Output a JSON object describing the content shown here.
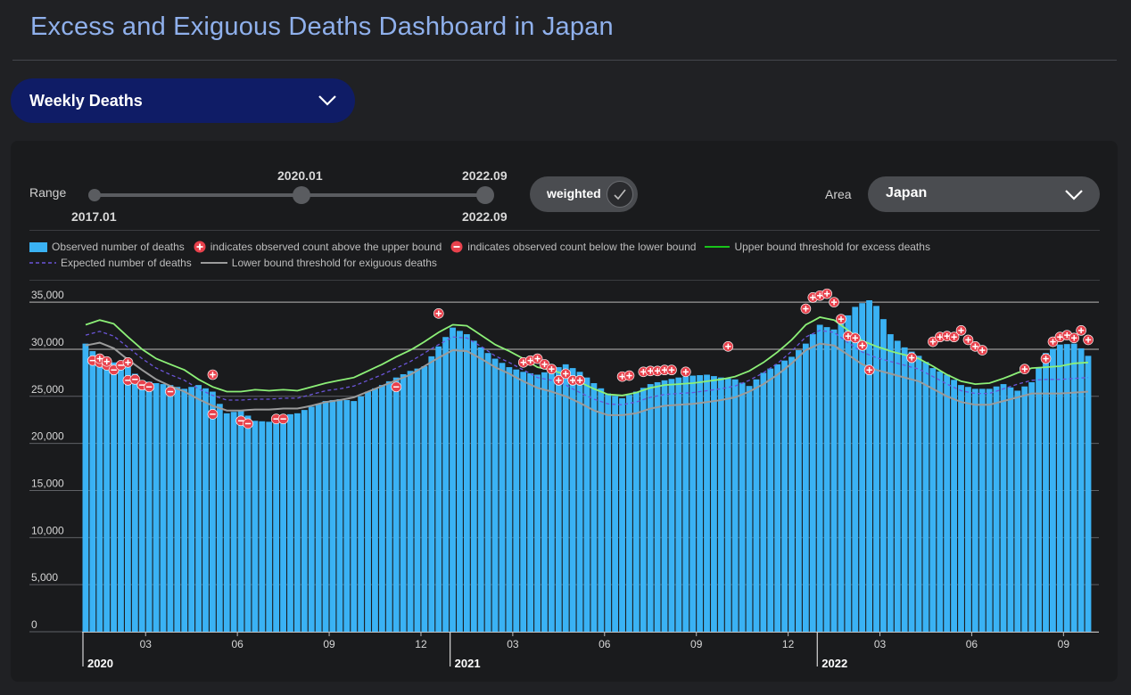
{
  "title": "Excess and Exiguous Deaths Dashboard in Japan",
  "metric_select": {
    "value": "Weekly Deaths",
    "icon": "chevron-down-icon"
  },
  "controls": {
    "range_label": "Range",
    "range_min": "2017.01",
    "range_start": "2020.01",
    "range_end": "2022.09",
    "range_end_below": "2022.09",
    "weighted_label": "weighted",
    "weighted_checked": true,
    "area_label": "Area",
    "area_value": "Japan"
  },
  "legend": {
    "observed": "Observed number of deaths",
    "above": "indicates observed count above the upper bound",
    "below": "indicates observed count below the lower bound",
    "upper": "Upper bound threshold for excess deaths",
    "expected": "Expected number of deaths",
    "lower": "Lower bound threshold for exiguous deaths"
  },
  "colors": {
    "bar": "#3ab2f4",
    "upper": "#8cf077",
    "expected": "#6b55d8",
    "lower": "#9b9b9b",
    "marker": "#e8414c",
    "title": "#8fb0ec"
  },
  "chart_data": {
    "type": "bar",
    "ylim": [
      0,
      37000
    ],
    "y_ticks": [
      "0",
      "5,000",
      "10,000",
      "15,000",
      "20,000",
      "25,000",
      "30,000",
      "35,000"
    ],
    "y_tick_values": [
      0,
      5000,
      10000,
      15000,
      20000,
      25000,
      30000,
      35000
    ],
    "x_ticks": [
      {
        "week": 9,
        "label": "03"
      },
      {
        "week": 22,
        "label": "06"
      },
      {
        "week": 35,
        "label": "09"
      },
      {
        "week": 48,
        "label": "12"
      },
      {
        "week": 61,
        "label": "03"
      },
      {
        "week": 74,
        "label": "06"
      },
      {
        "week": 87,
        "label": "09"
      },
      {
        "week": 100,
        "label": "12"
      },
      {
        "week": 113,
        "label": "03"
      },
      {
        "week": 126,
        "label": "06"
      },
      {
        "week": 139,
        "label": "09"
      }
    ],
    "years": [
      {
        "week": 0,
        "label": "2020"
      },
      {
        "week": 52,
        "label": "2021"
      },
      {
        "week": 104,
        "label": "2022"
      }
    ],
    "n_weeks": 143,
    "observed_anchors": [
      [
        0,
        30600
      ],
      [
        2,
        29000
      ],
      [
        4,
        28600
      ],
      [
        6,
        28100
      ],
      [
        8,
        26700
      ],
      [
        10,
        26400
      ],
      [
        12,
        26200
      ],
      [
        14,
        25800
      ],
      [
        16,
        26200
      ],
      [
        18,
        25500
      ],
      [
        19,
        24200
      ],
      [
        20,
        23200
      ],
      [
        22,
        23500
      ],
      [
        24,
        22400
      ],
      [
        26,
        22300
      ],
      [
        28,
        23000
      ],
      [
        30,
        23200
      ],
      [
        32,
        23900
      ],
      [
        34,
        24500
      ],
      [
        36,
        24700
      ],
      [
        38,
        24500
      ],
      [
        40,
        25500
      ],
      [
        42,
        26200
      ],
      [
        44,
        27000
      ],
      [
        46,
        27700
      ],
      [
        48,
        28200
      ],
      [
        50,
        30300
      ],
      [
        52,
        32300
      ],
      [
        54,
        31600
      ],
      [
        56,
        30200
      ],
      [
        58,
        29000
      ],
      [
        60,
        28100
      ],
      [
        62,
        27600
      ],
      [
        64,
        27300
      ],
      [
        66,
        27800
      ],
      [
        68,
        28400
      ],
      [
        70,
        27600
      ],
      [
        72,
        26400
      ],
      [
        74,
        25300
      ],
      [
        76,
        24800
      ],
      [
        78,
        25500
      ],
      [
        80,
        26300
      ],
      [
        82,
        26700
      ],
      [
        84,
        27000
      ],
      [
        86,
        27200
      ],
      [
        88,
        27300
      ],
      [
        90,
        27000
      ],
      [
        92,
        26800
      ],
      [
        94,
        26100
      ],
      [
        96,
        27500
      ],
      [
        98,
        28400
      ],
      [
        100,
        29200
      ],
      [
        102,
        30600
      ],
      [
        104,
        32600
      ],
      [
        106,
        32100
      ],
      [
        108,
        33600
      ],
      [
        109,
        34500
      ],
      [
        110,
        34900
      ],
      [
        111,
        35200
      ],
      [
        112,
        34600
      ],
      [
        113,
        33200
      ],
      [
        114,
        31600
      ],
      [
        116,
        30200
      ],
      [
        118,
        29300
      ],
      [
        120,
        28000
      ],
      [
        122,
        27300
      ],
      [
        124,
        26200
      ],
      [
        126,
        25800
      ],
      [
        128,
        25800
      ],
      [
        130,
        26300
      ],
      [
        132,
        25600
      ],
      [
        134,
        26500
      ],
      [
        136,
        29600
      ],
      [
        138,
        30500
      ],
      [
        140,
        30600
      ],
      [
        141,
        30100
      ],
      [
        142,
        29300
      ]
    ],
    "upper_anchors": [
      [
        0,
        32600
      ],
      [
        2,
        33100
      ],
      [
        4,
        32700
      ],
      [
        6,
        31300
      ],
      [
        8,
        30000
      ],
      [
        10,
        29000
      ],
      [
        12,
        28400
      ],
      [
        14,
        27800
      ],
      [
        16,
        26800
      ],
      [
        18,
        26000
      ],
      [
        20,
        25500
      ],
      [
        22,
        25500
      ],
      [
        24,
        25700
      ],
      [
        26,
        25600
      ],
      [
        28,
        25700
      ],
      [
        30,
        25600
      ],
      [
        32,
        26000
      ],
      [
        34,
        26400
      ],
      [
        36,
        26700
      ],
      [
        38,
        27000
      ],
      [
        40,
        27700
      ],
      [
        42,
        28400
      ],
      [
        44,
        29200
      ],
      [
        46,
        29900
      ],
      [
        48,
        30800
      ],
      [
        50,
        31800
      ],
      [
        52,
        32600
      ],
      [
        54,
        32500
      ],
      [
        56,
        31500
      ],
      [
        58,
        30500
      ],
      [
        60,
        29800
      ],
      [
        62,
        29000
      ],
      [
        64,
        28100
      ],
      [
        66,
        27800
      ],
      [
        68,
        27300
      ],
      [
        70,
        26500
      ],
      [
        72,
        25800
      ],
      [
        74,
        25200
      ],
      [
        76,
        25100
      ],
      [
        78,
        25400
      ],
      [
        80,
        25900
      ],
      [
        82,
        26200
      ],
      [
        84,
        26300
      ],
      [
        86,
        26400
      ],
      [
        88,
        26600
      ],
      [
        90,
        26800
      ],
      [
        92,
        27100
      ],
      [
        94,
        27700
      ],
      [
        96,
        28600
      ],
      [
        98,
        29700
      ],
      [
        100,
        31000
      ],
      [
        102,
        32600
      ],
      [
        104,
        33400
      ],
      [
        106,
        33100
      ],
      [
        108,
        32000
      ],
      [
        110,
        30900
      ],
      [
        112,
        30300
      ],
      [
        114,
        29800
      ],
      [
        116,
        29400
      ],
      [
        118,
        29000
      ],
      [
        120,
        28200
      ],
      [
        122,
        27300
      ],
      [
        124,
        26600
      ],
      [
        126,
        26300
      ],
      [
        128,
        26400
      ],
      [
        130,
        26900
      ],
      [
        132,
        27500
      ],
      [
        134,
        28000
      ],
      [
        136,
        28100
      ],
      [
        138,
        28200
      ],
      [
        140,
        28500
      ],
      [
        142,
        28600
      ]
    ],
    "expected_anchors": [
      [
        0,
        31500
      ],
      [
        2,
        31900
      ],
      [
        4,
        31400
      ],
      [
        6,
        30200
      ],
      [
        8,
        29000
      ],
      [
        10,
        28000
      ],
      [
        12,
        27300
      ],
      [
        14,
        26700
      ],
      [
        16,
        25800
      ],
      [
        18,
        25100
      ],
      [
        20,
        24600
      ],
      [
        22,
        24600
      ],
      [
        24,
        24700
      ],
      [
        26,
        24700
      ],
      [
        28,
        24800
      ],
      [
        30,
        24800
      ],
      [
        32,
        25200
      ],
      [
        34,
        25600
      ],
      [
        36,
        25800
      ],
      [
        38,
        26100
      ],
      [
        40,
        26700
      ],
      [
        42,
        27300
      ],
      [
        44,
        28000
      ],
      [
        46,
        28700
      ],
      [
        48,
        29600
      ],
      [
        50,
        30500
      ],
      [
        52,
        31300
      ],
      [
        54,
        31200
      ],
      [
        56,
        30300
      ],
      [
        58,
        29300
      ],
      [
        60,
        28600
      ],
      [
        62,
        27800
      ],
      [
        64,
        27000
      ],
      [
        66,
        26700
      ],
      [
        68,
        26200
      ],
      [
        70,
        25400
      ],
      [
        72,
        24700
      ],
      [
        74,
        24200
      ],
      [
        76,
        24100
      ],
      [
        78,
        24400
      ],
      [
        80,
        24900
      ],
      [
        82,
        25200
      ],
      [
        84,
        25300
      ],
      [
        86,
        25400
      ],
      [
        88,
        25600
      ],
      [
        90,
        25800
      ],
      [
        92,
        26100
      ],
      [
        94,
        26700
      ],
      [
        96,
        27500
      ],
      [
        98,
        28500
      ],
      [
        100,
        29800
      ],
      [
        102,
        31300
      ],
      [
        104,
        32000
      ],
      [
        106,
        31800
      ],
      [
        108,
        30700
      ],
      [
        110,
        29700
      ],
      [
        112,
        29100
      ],
      [
        114,
        28700
      ],
      [
        116,
        28300
      ],
      [
        118,
        27900
      ],
      [
        120,
        27100
      ],
      [
        122,
        26300
      ],
      [
        124,
        25600
      ],
      [
        126,
        25300
      ],
      [
        128,
        25300
      ],
      [
        130,
        25800
      ],
      [
        132,
        26300
      ],
      [
        134,
        26700
      ],
      [
        136,
        26800
      ],
      [
        138,
        26800
      ],
      [
        140,
        26900
      ],
      [
        142,
        27000
      ]
    ],
    "lower_anchors": [
      [
        0,
        30400
      ],
      [
        2,
        30700
      ],
      [
        4,
        30100
      ],
      [
        6,
        28900
      ],
      [
        8,
        27800
      ],
      [
        10,
        26800
      ],
      [
        12,
        26100
      ],
      [
        14,
        25500
      ],
      [
        16,
        24700
      ],
      [
        18,
        24000
      ],
      [
        20,
        23500
      ],
      [
        22,
        23500
      ],
      [
        24,
        23600
      ],
      [
        26,
        23600
      ],
      [
        28,
        23700
      ],
      [
        30,
        23700
      ],
      [
        32,
        24000
      ],
      [
        34,
        24400
      ],
      [
        36,
        24600
      ],
      [
        38,
        24900
      ],
      [
        40,
        25500
      ],
      [
        42,
        26100
      ],
      [
        44,
        26700
      ],
      [
        46,
        27300
      ],
      [
        48,
        28200
      ],
      [
        50,
        29100
      ],
      [
        52,
        29900
      ],
      [
        54,
        29800
      ],
      [
        56,
        29000
      ],
      [
        58,
        28100
      ],
      [
        60,
        27400
      ],
      [
        62,
        26600
      ],
      [
        64,
        25900
      ],
      [
        66,
        25500
      ],
      [
        68,
        25000
      ],
      [
        70,
        24300
      ],
      [
        72,
        23500
      ],
      [
        74,
        23000
      ],
      [
        76,
        23000
      ],
      [
        78,
        23200
      ],
      [
        80,
        23700
      ],
      [
        82,
        24000
      ],
      [
        84,
        24100
      ],
      [
        86,
        24200
      ],
      [
        88,
        24400
      ],
      [
        90,
        24600
      ],
      [
        92,
        24900
      ],
      [
        94,
        25500
      ],
      [
        96,
        26300
      ],
      [
        98,
        27300
      ],
      [
        100,
        28500
      ],
      [
        102,
        29900
      ],
      [
        104,
        30600
      ],
      [
        106,
        30400
      ],
      [
        108,
        29400
      ],
      [
        110,
        28400
      ],
      [
        112,
        27800
      ],
      [
        114,
        27400
      ],
      [
        116,
        27000
      ],
      [
        118,
        26600
      ],
      [
        120,
        25800
      ],
      [
        122,
        25000
      ],
      [
        124,
        24400
      ],
      [
        126,
        24100
      ],
      [
        128,
        24100
      ],
      [
        130,
        24500
      ],
      [
        132,
        24900
      ],
      [
        134,
        25300
      ],
      [
        136,
        25300
      ],
      [
        138,
        25300
      ],
      [
        140,
        25400
      ],
      [
        142,
        25500
      ]
    ],
    "above_markers": [
      [
        2,
        29000
      ],
      [
        3,
        28700
      ],
      [
        6,
        28600
      ],
      [
        18,
        27300
      ],
      [
        50,
        33800
      ],
      [
        62,
        28600
      ],
      [
        63,
        28800
      ],
      [
        64,
        29000
      ],
      [
        65,
        28400
      ],
      [
        66,
        27900
      ],
      [
        67,
        26700
      ],
      [
        68,
        27400
      ],
      [
        69,
        26700
      ],
      [
        70,
        26700
      ],
      [
        76,
        27100
      ],
      [
        77,
        27200
      ],
      [
        79,
        27600
      ],
      [
        80,
        27700
      ],
      [
        81,
        27700
      ],
      [
        82,
        27800
      ],
      [
        83,
        27800
      ],
      [
        85,
        27600
      ],
      [
        91,
        30300
      ],
      [
        102,
        34300
      ],
      [
        103,
        35500
      ],
      [
        104,
        35700
      ],
      [
        105,
        35900
      ],
      [
        106,
        35000
      ],
      [
        107,
        33200
      ],
      [
        108,
        31400
      ],
      [
        109,
        31200
      ],
      [
        110,
        30400
      ],
      [
        111,
        27800
      ],
      [
        117,
        29100
      ],
      [
        120,
        30800
      ],
      [
        121,
        31300
      ],
      [
        122,
        31400
      ],
      [
        123,
        31300
      ],
      [
        124,
        32000
      ],
      [
        125,
        31000
      ],
      [
        126,
        30300
      ],
      [
        127,
        29900
      ],
      [
        133,
        27900
      ],
      [
        136,
        29000
      ],
      [
        137,
        30800
      ],
      [
        138,
        31300
      ],
      [
        139,
        31500
      ],
      [
        140,
        31200
      ],
      [
        141,
        32000
      ],
      [
        142,
        31000
      ]
    ],
    "below_markers": [
      [
        1,
        28800
      ],
      [
        2,
        28600
      ],
      [
        3,
        28300
      ],
      [
        4,
        27800
      ],
      [
        5,
        28300
      ],
      [
        6,
        26700
      ],
      [
        7,
        26800
      ],
      [
        8,
        26200
      ],
      [
        9,
        26000
      ],
      [
        12,
        25500
      ],
      [
        18,
        23100
      ],
      [
        22,
        22400
      ],
      [
        23,
        22100
      ],
      [
        27,
        22600
      ],
      [
        28,
        22600
      ],
      [
        44,
        26000
      ]
    ]
  }
}
